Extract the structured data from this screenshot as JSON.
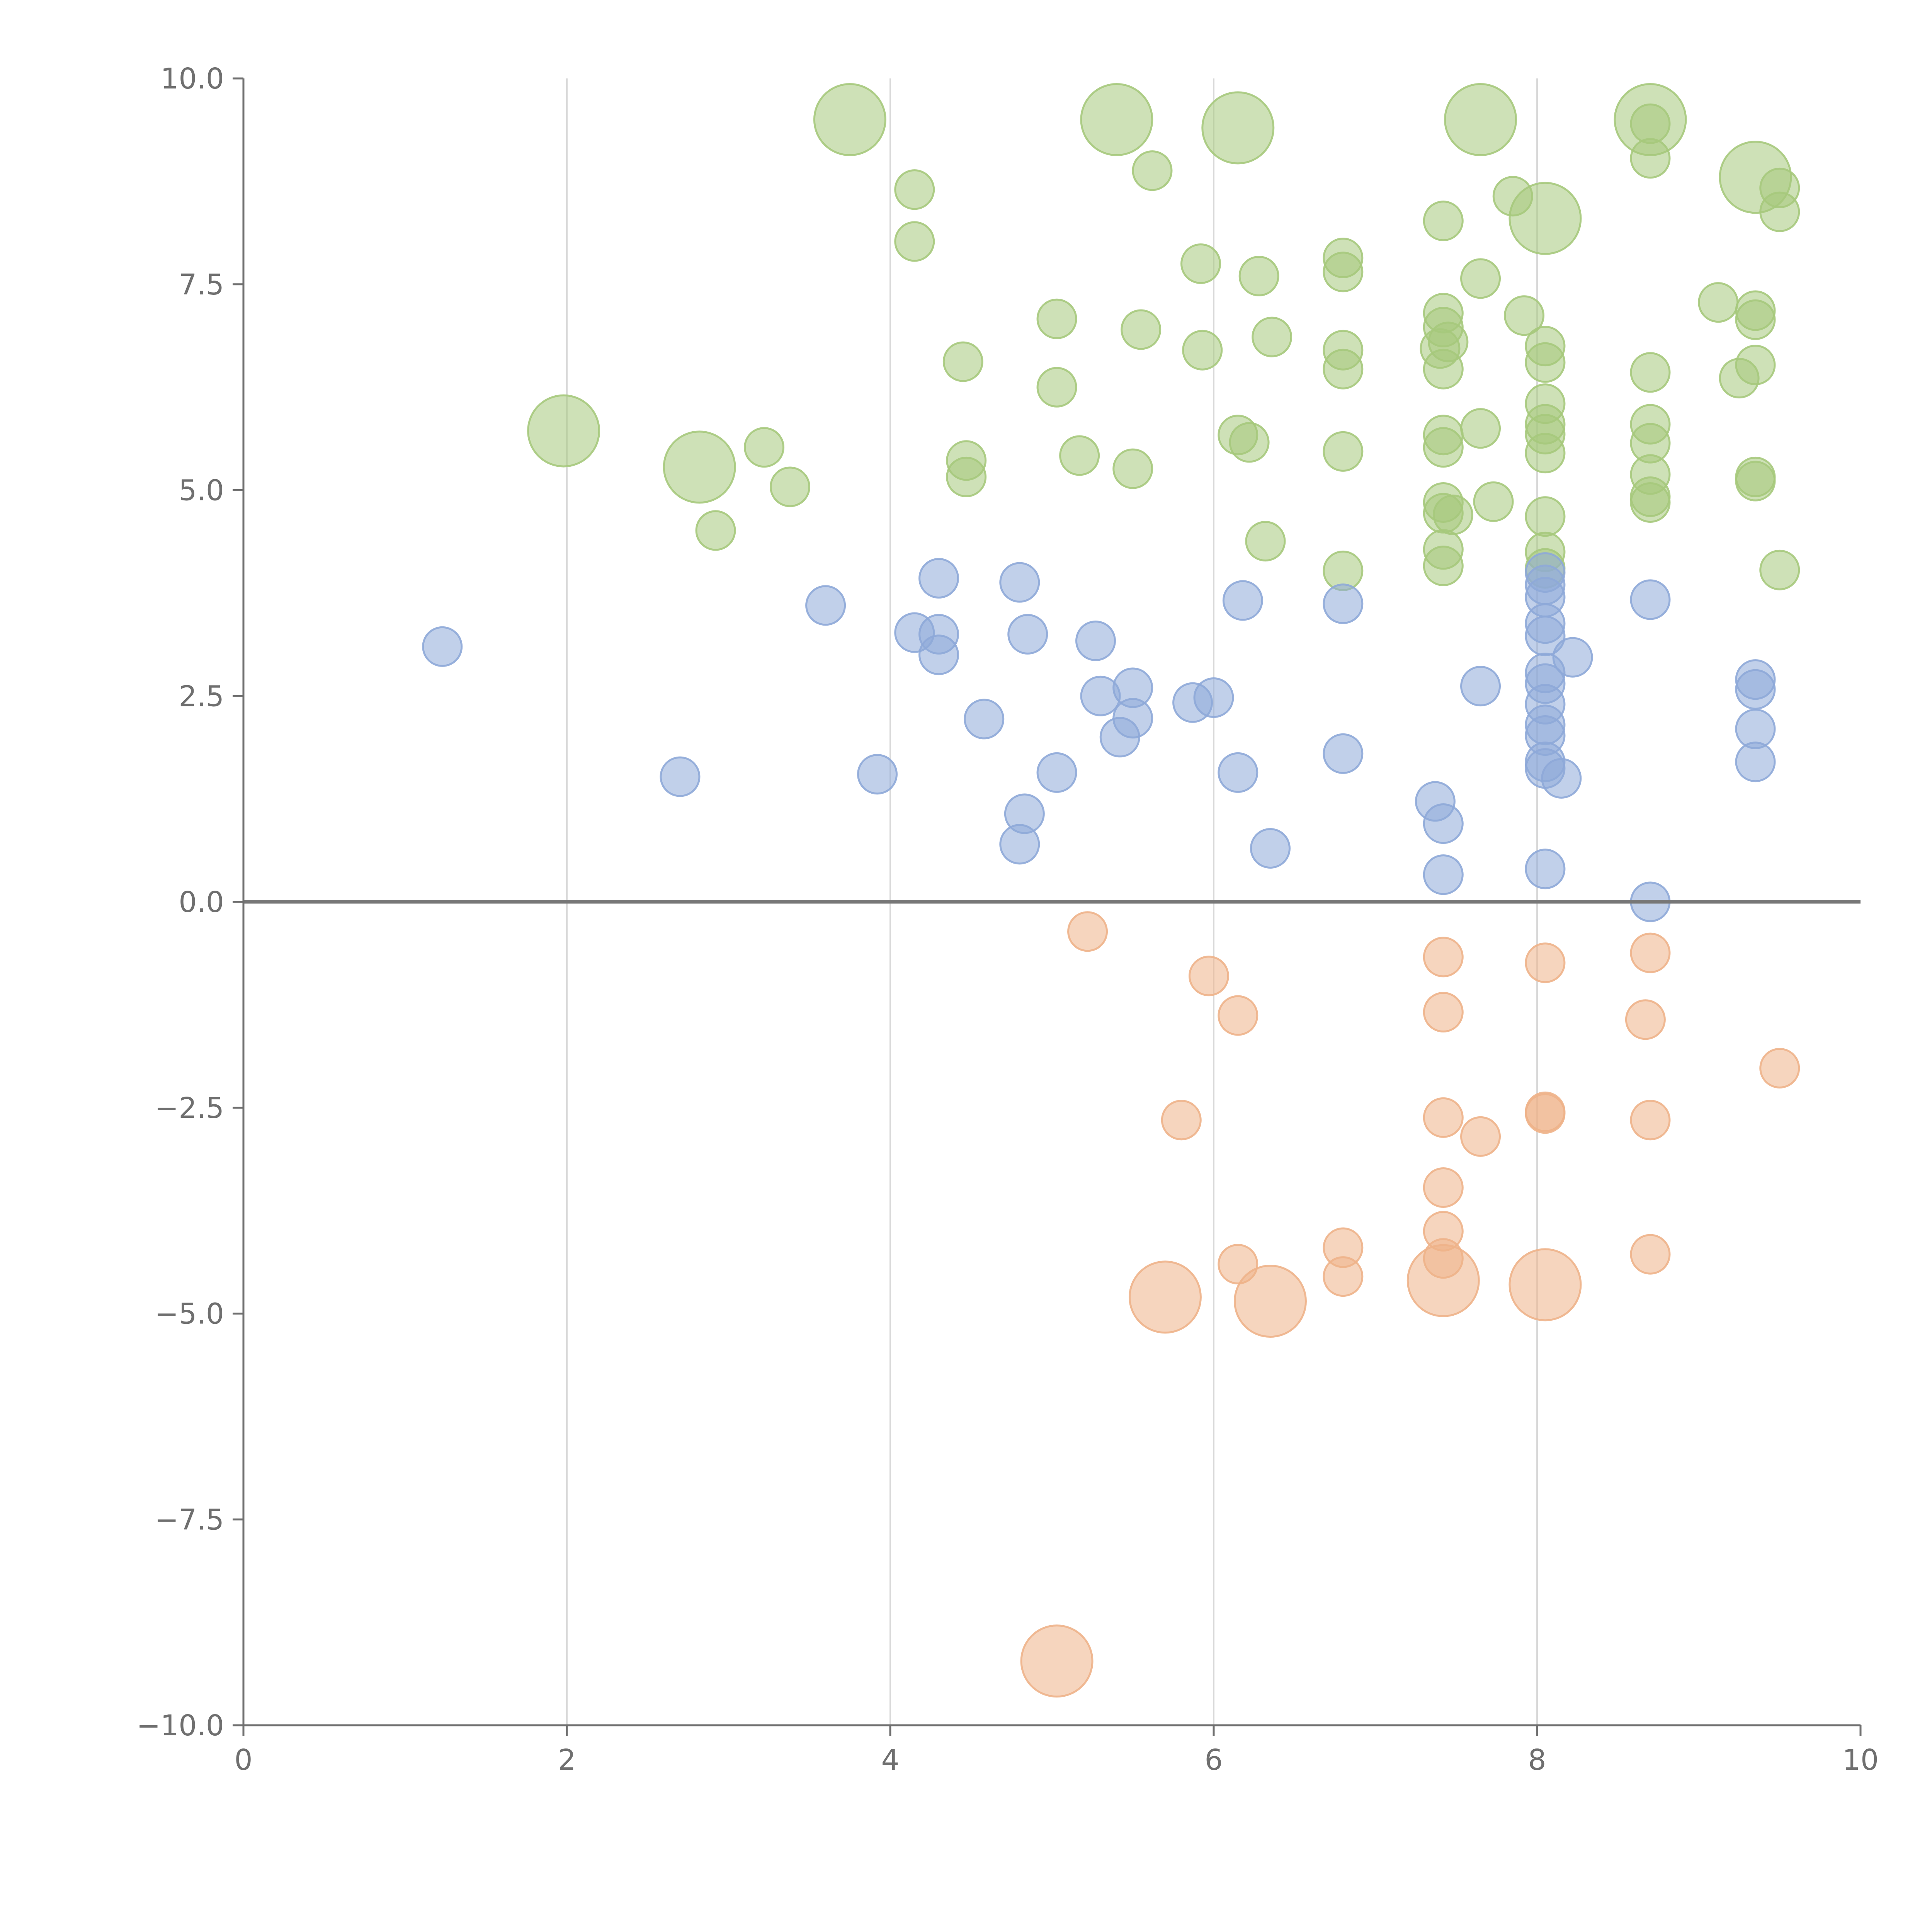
{
  "chart_data": {
    "type": "scatter",
    "title": "",
    "xlabel": "",
    "ylabel": "",
    "xlim": [
      0,
      10
    ],
    "ylim": [
      -10,
      10
    ],
    "x_ticks": [
      0,
      2,
      4,
      6,
      8,
      10
    ],
    "x_tick_labels": [
      "0",
      "2",
      "4",
      "6",
      "8",
      "10"
    ],
    "y_ticks": [
      -10,
      -7.5,
      -5,
      -2.5,
      0,
      2.5,
      5,
      7.5,
      10
    ],
    "y_tick_labels": [
      "−10.0",
      "−7.5",
      "−5.0",
      "−2.5",
      "0.0",
      "2.5",
      "5.0",
      "7.5",
      "10.0"
    ],
    "grid": "vertical",
    "reference_line_y": 0,
    "series": [
      {
        "name": "green",
        "color": "#a6c97c",
        "points": [
          [
            3.75,
            9.5,
            "L"
          ],
          [
            5.4,
            9.5,
            "L"
          ],
          [
            6.15,
            9.4,
            "L"
          ],
          [
            7.65,
            9.5,
            "L"
          ],
          [
            8.7,
            9.5,
            "L"
          ],
          [
            9.35,
            8.8,
            "L"
          ],
          [
            8.05,
            8.3,
            "L"
          ],
          [
            1.98,
            5.72,
            "L"
          ],
          [
            2.82,
            5.28,
            "L"
          ],
          [
            5.62,
            8.88,
            "S"
          ],
          [
            4.15,
            8.65,
            "S"
          ],
          [
            4.15,
            8.02,
            "S"
          ],
          [
            7.42,
            8.27,
            "S"
          ],
          [
            7.85,
            8.57,
            "S"
          ],
          [
            8.7,
            9.45,
            "S"
          ],
          [
            8.7,
            9.03,
            "S"
          ],
          [
            9.5,
            8.67,
            "S"
          ],
          [
            9.5,
            8.38,
            "S"
          ],
          [
            6.8,
            7.82,
            "S"
          ],
          [
            5.92,
            7.75,
            "S"
          ],
          [
            6.28,
            7.6,
            "S"
          ],
          [
            6.8,
            7.65,
            "S"
          ],
          [
            7.65,
            7.57,
            "S"
          ],
          [
            7.42,
            7.15,
            "S"
          ],
          [
            7.92,
            7.12,
            "S"
          ],
          [
            9.12,
            7.28,
            "S"
          ],
          [
            9.35,
            7.18,
            "S"
          ],
          [
            9.35,
            7.07,
            "S"
          ],
          [
            5.03,
            7.08,
            "S"
          ],
          [
            5.55,
            6.95,
            "S"
          ],
          [
            7.42,
            6.98,
            "S"
          ],
          [
            7.4,
            6.72,
            "S"
          ],
          [
            7.45,
            6.8,
            "S"
          ],
          [
            8.05,
            6.75,
            "S"
          ],
          [
            8.05,
            6.55,
            "S"
          ],
          [
            6.36,
            6.86,
            "S"
          ],
          [
            5.93,
            6.7,
            "S"
          ],
          [
            6.8,
            6.7,
            "S"
          ],
          [
            4.45,
            6.56,
            "S"
          ],
          [
            6.8,
            6.47,
            "S"
          ],
          [
            7.42,
            6.47,
            "S"
          ],
          [
            8.7,
            6.43,
            "S"
          ],
          [
            9.35,
            6.52,
            "S"
          ],
          [
            9.25,
            6.36,
            "S"
          ],
          [
            5.03,
            6.25,
            "S"
          ],
          [
            8.05,
            6.05,
            "S"
          ],
          [
            8.7,
            5.8,
            "S"
          ],
          [
            8.05,
            5.8,
            "S"
          ],
          [
            8.05,
            5.68,
            "S"
          ],
          [
            7.65,
            5.75,
            "S"
          ],
          [
            6.15,
            5.67,
            "S"
          ],
          [
            6.22,
            5.58,
            "S"
          ],
          [
            7.42,
            5.67,
            "S"
          ],
          [
            7.42,
            5.52,
            "S"
          ],
          [
            8.7,
            5.57,
            "S"
          ],
          [
            3.22,
            5.52,
            "S"
          ],
          [
            6.8,
            5.47,
            "S"
          ],
          [
            8.05,
            5.45,
            "S"
          ],
          [
            5.17,
            5.42,
            "S"
          ],
          [
            4.47,
            5.36,
            "S"
          ],
          [
            5.5,
            5.26,
            "S"
          ],
          [
            8.7,
            5.19,
            "S"
          ],
          [
            9.35,
            5.16,
            "S"
          ],
          [
            9.35,
            5.11,
            "S"
          ],
          [
            4.47,
            5.16,
            "S"
          ],
          [
            3.38,
            5.04,
            "S"
          ],
          [
            8.7,
            4.92,
            "S"
          ],
          [
            8.7,
            4.85,
            "S"
          ],
          [
            7.73,
            4.86,
            "S"
          ],
          [
            7.42,
            4.85,
            "S"
          ],
          [
            7.42,
            4.72,
            "S"
          ],
          [
            7.48,
            4.7,
            "S"
          ],
          [
            8.05,
            4.68,
            "S"
          ],
          [
            2.92,
            4.51,
            "S"
          ],
          [
            6.32,
            4.38,
            "S"
          ],
          [
            7.42,
            4.28,
            "S"
          ],
          [
            8.05,
            4.25,
            "S"
          ],
          [
            7.42,
            4.08,
            "S"
          ],
          [
            6.8,
            4.02,
            "S"
          ],
          [
            9.5,
            4.03,
            "S"
          ],
          [
            8.05,
            4.05,
            "S"
          ]
        ]
      },
      {
        "name": "blue",
        "color": "#8ea9d8",
        "points": [
          [
            1.23,
            3.1,
            "S"
          ],
          [
            3.6,
            3.6,
            "S"
          ],
          [
            4.3,
            3.93,
            "S"
          ],
          [
            4.8,
            3.88,
            "S"
          ],
          [
            4.15,
            3.27,
            "S"
          ],
          [
            4.3,
            3.25,
            "S"
          ],
          [
            4.3,
            3.0,
            "S"
          ],
          [
            4.85,
            3.25,
            "S"
          ],
          [
            5.27,
            3.17,
            "S"
          ],
          [
            6.18,
            3.66,
            "S"
          ],
          [
            6.8,
            3.62,
            "S"
          ],
          [
            8.05,
            4.0,
            "S"
          ],
          [
            8.05,
            3.85,
            "S"
          ],
          [
            8.05,
            3.7,
            "S"
          ],
          [
            8.05,
            3.38,
            "S"
          ],
          [
            8.05,
            3.23,
            "S"
          ],
          [
            8.22,
            2.97,
            "S"
          ],
          [
            8.05,
            2.78,
            "S"
          ],
          [
            8.05,
            2.65,
            "S"
          ],
          [
            8.05,
            2.4,
            "S"
          ],
          [
            8.05,
            2.15,
            "S"
          ],
          [
            8.05,
            2.02,
            "S"
          ],
          [
            8.05,
            1.7,
            "S"
          ],
          [
            8.05,
            1.62,
            "S"
          ],
          [
            8.15,
            1.5,
            "S"
          ],
          [
            8.7,
            3.67,
            "S"
          ],
          [
            9.35,
            2.7,
            "S"
          ],
          [
            9.35,
            2.58,
            "S"
          ],
          [
            9.35,
            2.1,
            "S"
          ],
          [
            9.35,
            1.7,
            "S"
          ],
          [
            7.65,
            2.62,
            "S"
          ],
          [
            5.3,
            2.5,
            "S"
          ],
          [
            5.5,
            2.6,
            "S"
          ],
          [
            5.5,
            2.23,
            "S"
          ],
          [
            5.87,
            2.42,
            "S"
          ],
          [
            6.0,
            2.48,
            "S"
          ],
          [
            4.58,
            2.22,
            "S"
          ],
          [
            5.42,
            2.0,
            "S"
          ],
          [
            6.8,
            1.8,
            "S"
          ],
          [
            2.7,
            1.52,
            "S"
          ],
          [
            3.92,
            1.55,
            "S"
          ],
          [
            5.03,
            1.57,
            "S"
          ],
          [
            6.15,
            1.57,
            "S"
          ],
          [
            7.37,
            1.22,
            "S"
          ],
          [
            7.42,
            0.95,
            "S"
          ],
          [
            4.83,
            1.07,
            "S"
          ],
          [
            4.8,
            0.7,
            "S"
          ],
          [
            6.35,
            0.65,
            "S"
          ],
          [
            7.42,
            0.33,
            "S"
          ],
          [
            8.05,
            0.4,
            "S"
          ],
          [
            8.7,
            0.0,
            "S"
          ]
        ]
      },
      {
        "name": "orange",
        "color": "#eeb389",
        "points": [
          [
            5.22,
            -0.36,
            "S"
          ],
          [
            5.97,
            -0.9,
            "S"
          ],
          [
            6.15,
            -1.38,
            "S"
          ],
          [
            7.42,
            -0.67,
            "S"
          ],
          [
            7.42,
            -1.34,
            "S"
          ],
          [
            8.05,
            -0.74,
            "S"
          ],
          [
            8.7,
            -0.62,
            "S"
          ],
          [
            8.67,
            -1.43,
            "S"
          ],
          [
            9.5,
            -2.02,
            "S"
          ],
          [
            5.8,
            -2.65,
            "S"
          ],
          [
            7.42,
            -2.62,
            "S"
          ],
          [
            7.65,
            -2.85,
            "S"
          ],
          [
            8.05,
            -2.55,
            "S"
          ],
          [
            8.05,
            -2.57,
            "S"
          ],
          [
            8.7,
            -2.65,
            "S"
          ],
          [
            7.42,
            -3.47,
            "S"
          ],
          [
            7.42,
            -4.0,
            "S"
          ],
          [
            7.42,
            -4.33,
            "S"
          ],
          [
            6.8,
            -4.2,
            "S"
          ],
          [
            6.15,
            -4.4,
            "S"
          ],
          [
            6.8,
            -4.55,
            "S"
          ],
          [
            8.7,
            -4.28,
            "S"
          ],
          [
            5.7,
            -4.8,
            "L"
          ],
          [
            6.35,
            -4.85,
            "L"
          ],
          [
            7.42,
            -4.6,
            "L"
          ],
          [
            8.05,
            -4.65,
            "L"
          ],
          [
            5.03,
            -9.22,
            "L"
          ]
        ]
      }
    ]
  }
}
